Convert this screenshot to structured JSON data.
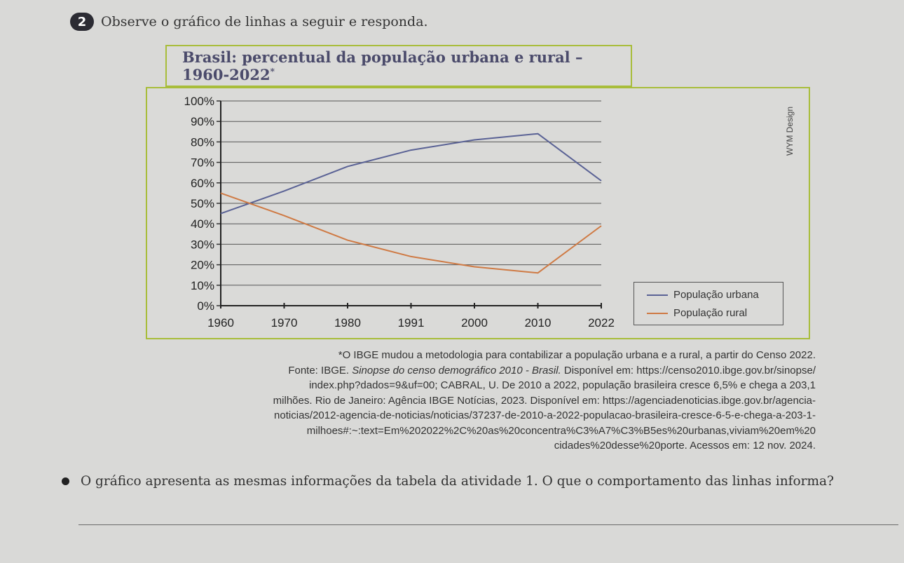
{
  "question": {
    "number": "2",
    "prompt": "Observe o gráfico de linhas a seguir e responda."
  },
  "credit": "WYM Design",
  "chart_data": {
    "type": "line",
    "title": "Brasil: percentual da população urbana e rural – 1960-2022",
    "title_mark": "*",
    "x": [
      "1960",
      "1970",
      "1980",
      "1991",
      "2000",
      "2010",
      "2022"
    ],
    "yticks": [
      "0%",
      "10%",
      "20%",
      "30%",
      "40%",
      "50%",
      "60%",
      "70%",
      "80%",
      "90%",
      "100%"
    ],
    "ylim": [
      0,
      100
    ],
    "grid": true,
    "legend_position": "bottom-right",
    "series": [
      {
        "name": "População urbana",
        "color": "#5a6295",
        "values": [
          45,
          56,
          68,
          76,
          81,
          84,
          61
        ]
      },
      {
        "name": "População rural",
        "color": "#cf7a44",
        "values": [
          55,
          44,
          32,
          24,
          19,
          16,
          39
        ]
      }
    ]
  },
  "notes": {
    "footnote": "*O IBGE mudou a metodologia para contabilizar a população urbana e a rural, a partir do Censo 2022.",
    "source_prefix": "Fonte: IBGE. ",
    "source_italic": "Sinopse do censo demográfico 2010 - Brasil.",
    "source_rest": " Disponível em: https://censo2010.ibge.gov.br/sinopse/",
    "line2": "index.php?dados=9&uf=00; CABRAL, U. De 2010 a 2022, população brasileira cresce 6,5% e chega a 203,1",
    "line3": "milhões. Rio de Janeiro: Agência IBGE Notícias, 2023. Disponível em: https://agenciadenoticias.ibge.gov.br/agencia-",
    "line4": "noticias/2012-agencia-de-noticias/noticias/37237-de-2010-a-2022-populacao-brasileira-cresce-6-5-e-chega-a-203-1-",
    "line5": "milhoes#:~:text=Em%202022%2C%20as%20concentra%C3%A7%C3%B5es%20urbanas,viviam%20em%20",
    "line6": "cidades%20desse%20porte. Acessos em: 12 nov. 2024."
  },
  "question2": "O gráfico apresenta as mesmas informações da tabela da atividade 1. O que o comportamento das linhas informa?"
}
